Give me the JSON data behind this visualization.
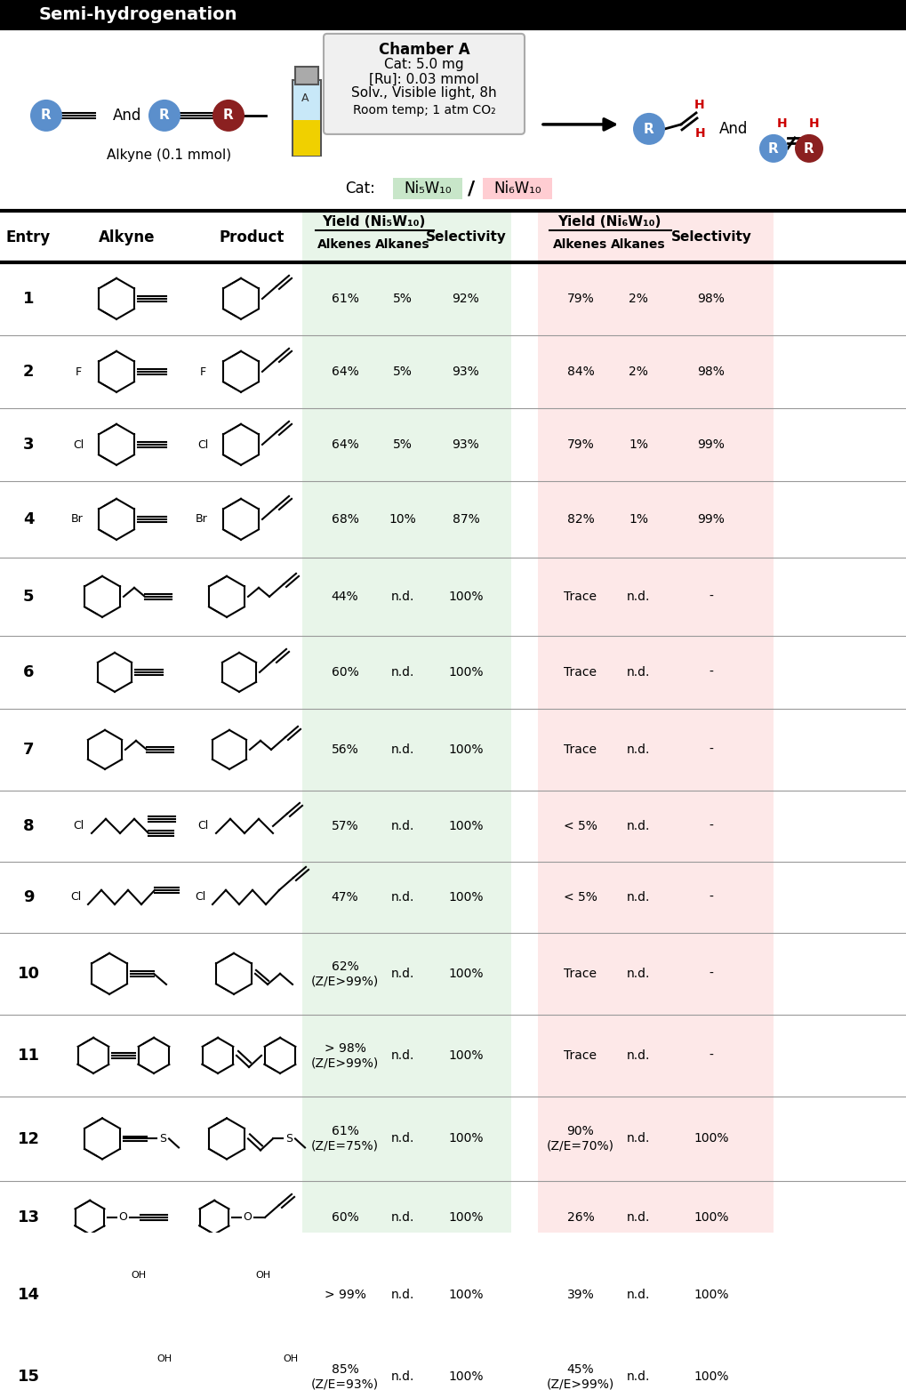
{
  "title": "Semi-hydrogenation",
  "fig_width": 10.19,
  "fig_height": 13.86,
  "bg_color": "#ffffff",
  "header_bg": "#000000",
  "header_text_color": "#ffffff",
  "green_bg": "#e8f5e9",
  "pink_bg": "#fde8e8",
  "blue_R": "#5b8fcc",
  "red_R": "#8b2020",
  "rows": [
    {
      "entry": "1",
      "ni5_alkenes": "61%",
      "ni5_alkanes": "5%",
      "ni5_sel": "92%",
      "ni6_alkenes": "79%",
      "ni6_alkanes": "2%",
      "ni6_sel": "98%"
    },
    {
      "entry": "2",
      "ni5_alkenes": "64%",
      "ni5_alkanes": "5%",
      "ni5_sel": "93%",
      "ni6_alkenes": "84%",
      "ni6_alkanes": "2%",
      "ni6_sel": "98%"
    },
    {
      "entry": "3",
      "ni5_alkenes": "64%",
      "ni5_alkanes": "5%",
      "ni5_sel": "93%",
      "ni6_alkenes": "79%",
      "ni6_alkanes": "1%",
      "ni6_sel": "99%"
    },
    {
      "entry": "4",
      "ni5_alkenes": "68%",
      "ni5_alkanes": "10%",
      "ni5_sel": "87%",
      "ni6_alkenes": "82%",
      "ni6_alkanes": "1%",
      "ni6_sel": "99%"
    },
    {
      "entry": "5",
      "ni5_alkenes": "44%",
      "ni5_alkanes": "n.d.",
      "ni5_sel": "100%",
      "ni6_alkenes": "Trace",
      "ni6_alkanes": "n.d.",
      "ni6_sel": "-"
    },
    {
      "entry": "6",
      "ni5_alkenes": "60%",
      "ni5_alkanes": "n.d.",
      "ni5_sel": "100%",
      "ni6_alkenes": "Trace",
      "ni6_alkanes": "n.d.",
      "ni6_sel": "-"
    },
    {
      "entry": "7",
      "ni5_alkenes": "56%",
      "ni5_alkanes": "n.d.",
      "ni5_sel": "100%",
      "ni6_alkenes": "Trace",
      "ni6_alkanes": "n.d.",
      "ni6_sel": "-"
    },
    {
      "entry": "8",
      "ni5_alkenes": "57%",
      "ni5_alkanes": "n.d.",
      "ni5_sel": "100%",
      "ni6_alkenes": "< 5%",
      "ni6_alkanes": "n.d.",
      "ni6_sel": "-"
    },
    {
      "entry": "9",
      "ni5_alkenes": "47%",
      "ni5_alkanes": "n.d.",
      "ni5_sel": "100%",
      "ni6_alkenes": "< 5%",
      "ni6_alkanes": "n.d.",
      "ni6_sel": "-"
    },
    {
      "entry": "10",
      "ni5_alkenes": "62%\n(Z/E>99%)",
      "ni5_alkanes": "n.d.",
      "ni5_sel": "100%",
      "ni6_alkenes": "Trace",
      "ni6_alkanes": "n.d.",
      "ni6_sel": "-"
    },
    {
      "entry": "11",
      "ni5_alkenes": "> 98%\n(Z/E>99%)",
      "ni5_alkanes": "n.d.",
      "ni5_sel": "100%",
      "ni6_alkenes": "Trace",
      "ni6_alkanes": "n.d.",
      "ni6_sel": "-"
    },
    {
      "entry": "12",
      "ni5_alkenes": "61%\n(Z/E=75%)",
      "ni5_alkanes": "n.d.",
      "ni5_sel": "100%",
      "ni6_alkenes": "90%\n(Z/E=70%)",
      "ni6_alkanes": "n.d.",
      "ni6_sel": "100%"
    },
    {
      "entry": "13",
      "ni5_alkenes": "60%",
      "ni5_alkanes": "n.d.",
      "ni5_sel": "100%",
      "ni6_alkenes": "26%",
      "ni6_alkanes": "n.d.",
      "ni6_sel": "100%"
    },
    {
      "entry": "14",
      "ni5_alkenes": "> 99%",
      "ni5_alkanes": "n.d.",
      "ni5_sel": "100%",
      "ni6_alkenes": "39%",
      "ni6_alkanes": "n.d.",
      "ni6_sel": "100%"
    },
    {
      "entry": "15",
      "ni5_alkenes": "85%\n(Z/E=93%)",
      "ni5_alkanes": "n.d.",
      "ni5_sel": "100%",
      "ni6_alkenes": "45%\n(Z/E>99%)",
      "ni6_alkanes": "n.d.",
      "ni6_sel": "100%"
    }
  ]
}
